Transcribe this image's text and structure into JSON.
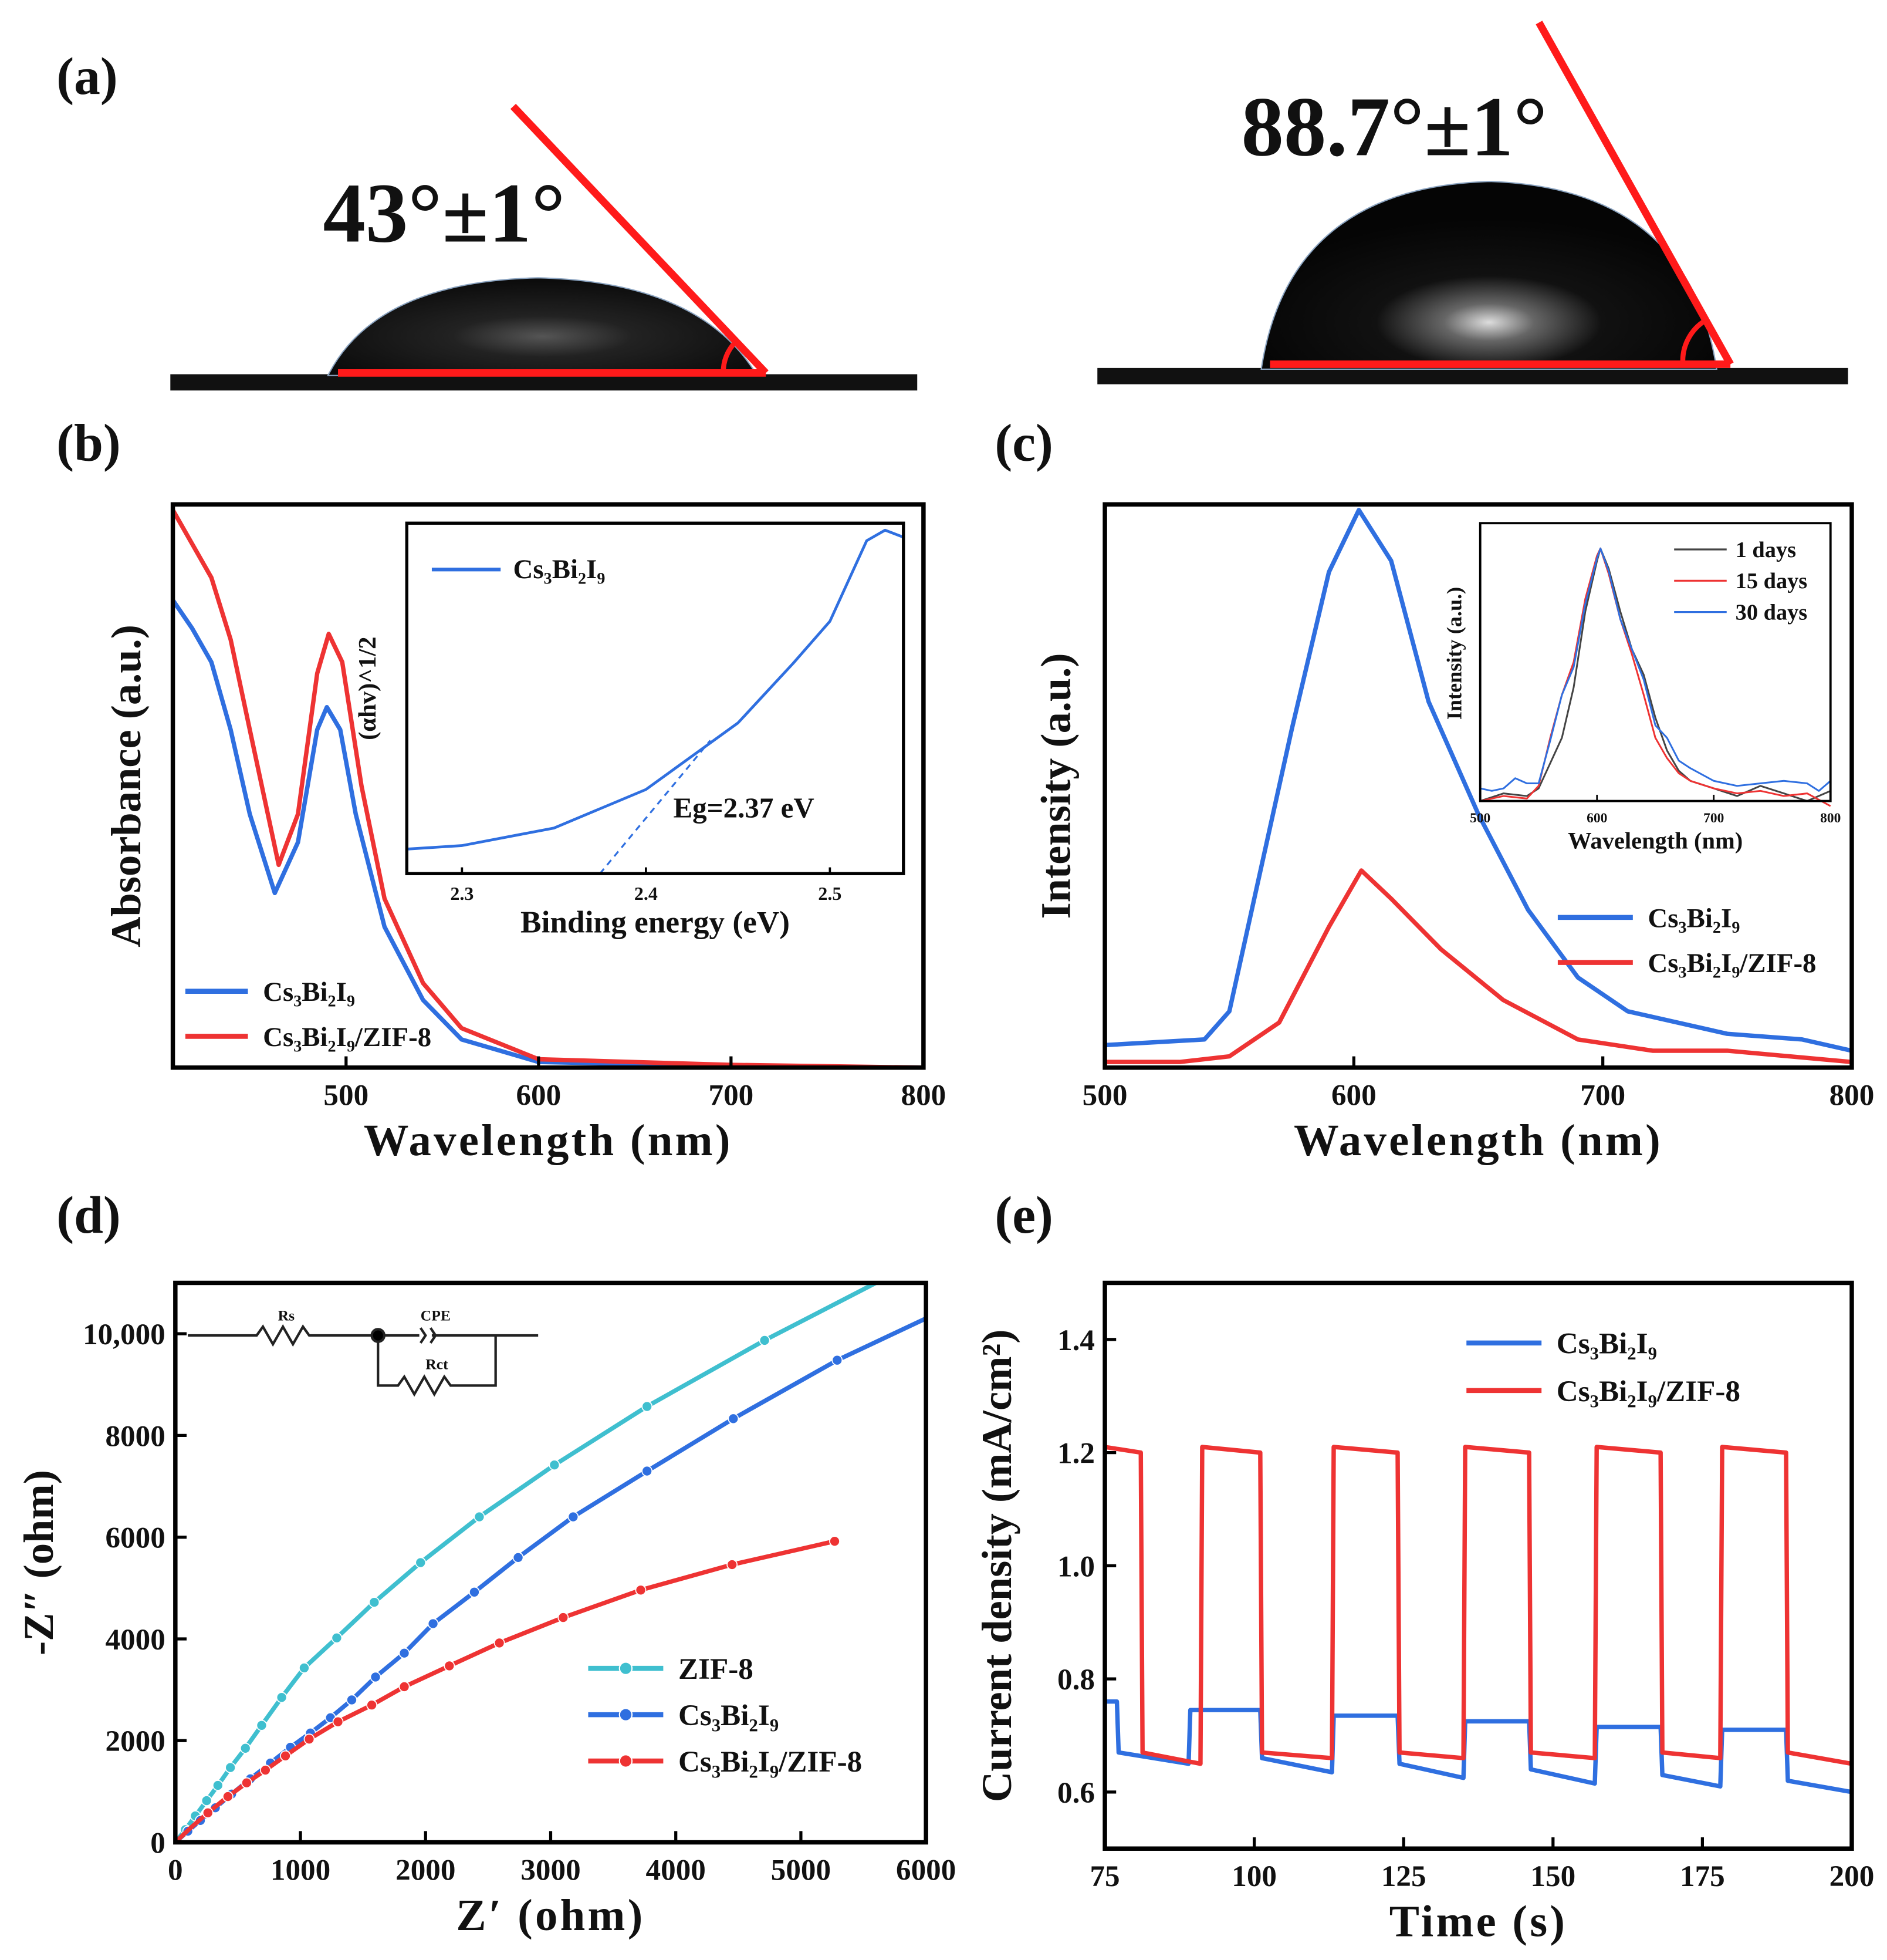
{
  "colors": {
    "blue": "#2f6fe0",
    "red": "#ee3333",
    "cyan": "#3fbfcf",
    "dark": "#333333",
    "angle_line": "#ff1a1a"
  },
  "panel_a": {
    "label": "(a)",
    "left_angle": "43°±1°",
    "right_angle": "88.7°±1°"
  },
  "chart_data": [
    {
      "id": "b",
      "label": "(b)",
      "type": "line",
      "xlabel": "Wavelength (nm)",
      "ylabel": "Absorbance (a.u.)",
      "xlim": [
        410,
        800
      ],
      "ylim": [
        0,
        1
      ],
      "xticks": [
        500,
        600,
        700,
        800
      ],
      "xtick_labels": [
        "500",
        "600",
        "700",
        "800"
      ],
      "yticks": [],
      "ytick_labels": [],
      "legend_position": "bottom-left",
      "series": [
        {
          "name": "Cs₃Bi₂I₉",
          "color": "#2f6fe0",
          "x": [
            410,
            420,
            430,
            440,
            450,
            463,
            475,
            485,
            490,
            497,
            505,
            520,
            540,
            560,
            600,
            700,
            800
          ],
          "y": [
            0.83,
            0.78,
            0.72,
            0.6,
            0.45,
            0.31,
            0.4,
            0.6,
            0.64,
            0.6,
            0.45,
            0.25,
            0.12,
            0.05,
            0.01,
            0.003,
            0
          ]
        },
        {
          "name": "Cs₃Bi₂I₉/ZIF-8",
          "color": "#ee3333",
          "x": [
            410,
            420,
            430,
            440,
            450,
            465,
            475,
            485,
            491,
            498,
            508,
            520,
            540,
            560,
            600,
            700,
            800
          ],
          "y": [
            0.99,
            0.93,
            0.87,
            0.76,
            0.6,
            0.36,
            0.45,
            0.7,
            0.77,
            0.72,
            0.5,
            0.3,
            0.15,
            0.07,
            0.015,
            0.005,
            0
          ]
        }
      ],
      "inset": {
        "type": "line",
        "xlabel": "Binding energy (eV)",
        "ylabel": "(αhv)^1/2",
        "xlim": [
          2.27,
          2.54
        ],
        "ylim": [
          0,
          1
        ],
        "xticks": [
          2.3,
          2.4,
          2.5
        ],
        "xtick_labels": [
          "2.3",
          "2.4",
          "2.5"
        ],
        "annotation": "Eg=2.37 eV",
        "tangent": {
          "x": [
            2.375,
            2.435
          ],
          "y": [
            0,
            0.38
          ]
        },
        "series": [
          {
            "name": "Cs₃Bi₂I₉",
            "color": "#2f6fe0",
            "x": [
              2.27,
              2.3,
              2.35,
              2.4,
              2.45,
              2.48,
              2.5,
              2.52,
              2.53,
              2.54
            ],
            "y": [
              0.07,
              0.08,
              0.13,
              0.24,
              0.43,
              0.6,
              0.72,
              0.95,
              0.98,
              0.96
            ]
          }
        ]
      }
    },
    {
      "id": "c",
      "label": "(c)",
      "type": "line",
      "xlabel": "Wavelength (nm)",
      "ylabel": "Intensity (a.u.)",
      "xlim": [
        500,
        800
      ],
      "ylim": [
        0,
        1
      ],
      "xticks": [
        500,
        600,
        700,
        800
      ],
      "xtick_labels": [
        "500",
        "600",
        "700",
        "800"
      ],
      "yticks": [],
      "ytick_labels": [],
      "legend_position": "bottom-right",
      "series": [
        {
          "name": "Cs₃Bi₂I₉",
          "color": "#2f6fe0",
          "x": [
            500,
            540,
            550,
            560,
            575,
            590,
            602,
            615,
            630,
            650,
            670,
            690,
            710,
            750,
            780,
            800
          ],
          "y": [
            0.04,
            0.05,
            0.1,
            0.3,
            0.6,
            0.88,
            0.99,
            0.9,
            0.65,
            0.45,
            0.28,
            0.16,
            0.1,
            0.06,
            0.05,
            0.03
          ]
        },
        {
          "name": "Cs₃Bi₂I₉/ZIF-8",
          "color": "#ee3333",
          "x": [
            500,
            530,
            550,
            570,
            590,
            603,
            615,
            635,
            660,
            690,
            720,
            750,
            800
          ],
          "y": [
            0.01,
            0.01,
            0.02,
            0.08,
            0.25,
            0.35,
            0.3,
            0.21,
            0.12,
            0.05,
            0.03,
            0.03,
            0.01
          ]
        }
      ],
      "inset": {
        "type": "line",
        "xlabel": "Wavelength (nm)",
        "ylabel": "Intensity (a.u.)",
        "xlim": [
          500,
          800
        ],
        "ylim": [
          0,
          1.1
        ],
        "xticks": [
          500,
          600,
          700,
          800
        ],
        "xtick_labels": [
          "500",
          "600",
          "700",
          "800"
        ],
        "series": [
          {
            "name": "1 days",
            "color": "#444444",
            "x": [
              500,
              520,
              540,
              550,
              560,
              570,
              580,
              590,
              600,
              603,
              610,
              620,
              630,
              640,
              650,
              660,
              670,
              680,
              700,
              720,
              740,
              760,
              780,
              800
            ],
            "y": [
              0.0,
              0.03,
              0.02,
              0.05,
              0.15,
              0.25,
              0.45,
              0.75,
              0.95,
              1.0,
              0.92,
              0.75,
              0.6,
              0.5,
              0.33,
              0.2,
              0.12,
              0.08,
              0.05,
              0.02,
              0.06,
              0.03,
              0.0,
              0.04
            ]
          },
          {
            "name": "15 days",
            "color": "#ee3333",
            "x": [
              500,
              520,
              540,
              550,
              560,
              570,
              580,
              590,
              600,
              603,
              610,
              620,
              630,
              640,
              650,
              660,
              670,
              680,
              700,
              720,
              740,
              760,
              780,
              800
            ],
            "y": [
              0.0,
              0.02,
              0.01,
              0.06,
              0.25,
              0.42,
              0.55,
              0.8,
              0.97,
              1.0,
              0.9,
              0.72,
              0.58,
              0.42,
              0.25,
              0.17,
              0.11,
              0.08,
              0.05,
              0.03,
              0.04,
              0.02,
              0.03,
              -0.02
            ]
          },
          {
            "name": "30 days",
            "color": "#2f6fe0",
            "x": [
              500,
              510,
              520,
              530,
              540,
              550,
              560,
              570,
              580,
              590,
              600,
              603,
              610,
              620,
              630,
              640,
              650,
              660,
              670,
              680,
              700,
              720,
              740,
              760,
              780,
              790,
              800
            ],
            "y": [
              0.05,
              0.04,
              0.05,
              0.09,
              0.07,
              0.07,
              0.24,
              0.42,
              0.53,
              0.78,
              0.96,
              1.0,
              0.91,
              0.72,
              0.6,
              0.48,
              0.3,
              0.25,
              0.16,
              0.13,
              0.08,
              0.06,
              0.07,
              0.08,
              0.07,
              0.04,
              0.08
            ]
          }
        ]
      }
    },
    {
      "id": "d",
      "label": "(d)",
      "type": "line",
      "xlabel": "Z′ (ohm)",
      "ylabel": "-Z″ (ohm)",
      "xlim": [
        0,
        6000
      ],
      "ylim": [
        0,
        11000
      ],
      "xticks": [
        0,
        1000,
        2000,
        3000,
        4000,
        5000,
        6000
      ],
      "xtick_labels": [
        "0",
        "1000",
        "2000",
        "3000",
        "4000",
        "5000",
        "6000"
      ],
      "yticks": [
        0,
        2000,
        4000,
        6000,
        8000,
        10000
      ],
      "ytick_labels": [
        "0",
        "2000",
        "4000",
        "6000",
        "8000",
        "10,000"
      ],
      "legend_position": "bottom-right",
      "circuit": {
        "rs": "Rs",
        "cpe": "CPE",
        "rct": "Rct"
      },
      "series": [
        {
          "name": "ZIF-8",
          "color": "#3fbfcf",
          "x": [
            0,
            80,
            160,
            250,
            340,
            440,
            560,
            690,
            850,
            1030,
            1290,
            1590,
            1960,
            2430,
            3030,
            3770,
            4710,
            5600
          ],
          "y": [
            0,
            250,
            520,
            820,
            1120,
            1470,
            1850,
            2300,
            2850,
            3430,
            4020,
            4720,
            5500,
            6400,
            7420,
            8570,
            9870,
            11000
          ],
          "markers": [
            1,
            2,
            3,
            4,
            5,
            6,
            7,
            8,
            9,
            10,
            11,
            12,
            13,
            14,
            15,
            16
          ]
        },
        {
          "name": "Cs₃Bi₂I₉",
          "color": "#2f6fe0",
          "x": [
            0,
            100,
            200,
            320,
            450,
            600,
            760,
            920,
            1080,
            1240,
            1410,
            1600,
            1830,
            2060,
            2390,
            2740,
            3180,
            3770,
            4460,
            5290,
            6000
          ],
          "y": [
            0,
            220,
            430,
            680,
            950,
            1250,
            1560,
            1870,
            2150,
            2450,
            2800,
            3250,
            3720,
            4300,
            4920,
            5600,
            6400,
            7300,
            8330,
            9480,
            10300
          ],
          "markers": [
            1,
            2,
            3,
            4,
            5,
            6,
            7,
            8,
            9,
            10,
            11,
            12,
            13,
            14,
            15,
            16,
            17,
            18,
            19
          ]
        },
        {
          "name": "Cs₃Bi₂I₉/ZIF-8",
          "color": "#ee3333",
          "x": [
            0,
            120,
            260,
            420,
            570,
            720,
            880,
            1070,
            1300,
            1570,
            1830,
            2190,
            2590,
            3100,
            3720,
            4450,
            5270
          ],
          "y": [
            0,
            280,
            580,
            900,
            1170,
            1420,
            1700,
            2030,
            2370,
            2700,
            3060,
            3470,
            3920,
            4420,
            4960,
            5460,
            5920
          ],
          "markers": [
            2,
            3,
            4,
            5,
            6,
            7,
            8,
            9,
            10,
            11,
            12,
            13,
            14,
            15,
            16
          ]
        }
      ]
    },
    {
      "id": "e",
      "label": "(e)",
      "type": "line",
      "xlabel": "Time (s)",
      "ylabel": "Current density (mA/cm²)",
      "xlim": [
        75,
        200
      ],
      "ylim": [
        0.5,
        1.5
      ],
      "xticks": [
        75,
        100,
        125,
        150,
        175,
        200
      ],
      "xtick_labels": [
        "75",
        "100",
        "125",
        "150",
        "175",
        "200"
      ],
      "yticks": [
        0.6,
        0.8,
        1.0,
        1.2,
        1.4
      ],
      "ytick_labels": [
        "0.6",
        "0.8",
        "1.0",
        "1.2",
        "1.4"
      ],
      "legend_position": "top-left",
      "series": [
        {
          "name": "Cs₃Bi₂I₉",
          "color": "#2f6fe0",
          "x": [
            75,
            77,
            77.3,
            89,
            89.3,
            101,
            101.3,
            113,
            113.3,
            124,
            124.3,
            135,
            135.3,
            146,
            146.3,
            157,
            157.3,
            168,
            168.3,
            178,
            178.3,
            189,
            189.3,
            200
          ],
          "y": [
            0.76,
            0.76,
            0.67,
            0.65,
            0.745,
            0.745,
            0.66,
            0.635,
            0.735,
            0.735,
            0.65,
            0.625,
            0.725,
            0.725,
            0.64,
            0.615,
            0.715,
            0.715,
            0.63,
            0.61,
            0.71,
            0.71,
            0.62,
            0.6
          ]
        },
        {
          "name": "Cs₃Bi₂I₉/ZIF-8",
          "color": "#ee3333",
          "x": [
            75,
            81,
            81.3,
            91,
            91.3,
            101,
            101.3,
            113,
            113.3,
            124,
            124.3,
            135,
            135.3,
            146,
            146.3,
            157,
            157.3,
            168,
            168.3,
            178,
            178.3,
            189,
            189.3,
            200
          ],
          "y": [
            1.21,
            1.2,
            0.67,
            0.65,
            1.21,
            1.2,
            0.67,
            0.66,
            1.21,
            1.2,
            0.67,
            0.66,
            1.21,
            1.2,
            0.67,
            0.66,
            1.21,
            1.2,
            0.67,
            0.66,
            1.21,
            1.2,
            0.67,
            0.65
          ]
        }
      ]
    }
  ]
}
